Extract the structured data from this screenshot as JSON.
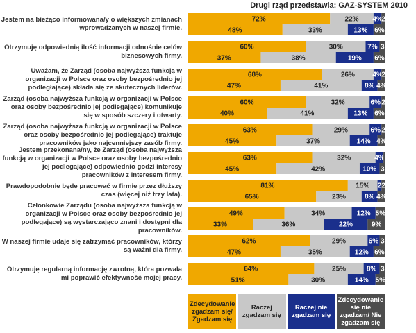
{
  "chart_data": {
    "type": "stacked-bar-horizontal",
    "title": "Drugi rząd przedstawia: GAZ-SYSTEM 2010",
    "xlim": [
      0,
      100
    ],
    "categories": [
      "Jestem na bieżąco informowana/y o większych zmianach wprowadzanych w naszej firmie.",
      null,
      "Otrzymuję odpowiednią ilość informacji odnośnie celów biznesowych firmy.",
      null,
      "Uważam, że Zarząd (osoba najwyższa funkcją w organizacji w Polsce oraz osoby bezpośrednio jej podległające) składa się ze skutecznych liderów.",
      null,
      "Zarząd (osoba najwyższa funkcją w organizacji w Polsce oraz osoby bezpośrednio jej podlegające) komunikuje się w sposób szczery i otwarty.",
      null,
      "Zarząd (osoba najwyższa funkcją w organizacji w Polsce oraz osoby bezpośrednio jej podlegające) traktuje pracowników jako najcenniejszy zasób firmy.",
      null,
      "Jestem przekonana/ny, że Zarząd (osoba najwyższa funkcją w organizacji w Polsce oraz osoby bezpośrednio jej podlegające) odpowiednio godzi interesy pracowników z interesem firmy.",
      null,
      "Prawdopodobnie będę pracować w firmie przez dłuższy czas (więcej niż trzy lata).",
      null,
      "Członkowie Zarządu (osoba najwyższa funkcją w organizacji w Polsce oraz osoby bezpośrednio jej podlegające) są wystarczająco znani i dostępni dla pracowników.",
      null,
      "W naszej firmie udaje się zatrzymać pracowników, którzy są ważni dla firmy.",
      null,
      "Otrzymuję regularną informację zwrotną, która pozwala mi poprawić efektywność mojej pracy.",
      null
    ],
    "series": [
      {
        "name": "Zdecydowanie zgadzam się/ Zgadzam się",
        "color": "#f0a800",
        "text_color": "#222222",
        "values": [
          72,
          48,
          60,
          37,
          68,
          47,
          60,
          40,
          63,
          45,
          63,
          45,
          81,
          65,
          49,
          33,
          62,
          47,
          64,
          51
        ],
        "value_labels": [
          "72%",
          "48%",
          "60%",
          "37%",
          "68%",
          "47%",
          "60%",
          "40%",
          "63%",
          "45%",
          "63%",
          "45%",
          "81%",
          "65%",
          "49%",
          "33%",
          "62%",
          "47%",
          "64%",
          "51%"
        ]
      },
      {
        "name": "Raczej zgadzam się",
        "color": "#c8c8c8",
        "text_color": "#222222",
        "values": [
          22,
          33,
          30,
          38,
          26,
          41,
          32,
          41,
          29,
          37,
          32,
          42,
          15,
          23,
          34,
          36,
          29,
          35,
          25,
          30
        ],
        "value_labels": [
          "22%",
          "33%",
          "30%",
          "38%",
          "26%",
          "41%",
          "32%",
          "41%",
          "29%",
          "37%",
          "32%",
          "42%",
          "15%",
          "23%",
          "34%",
          "36%",
          "29%",
          "35%",
          "25%",
          "30%"
        ]
      },
      {
        "name": "Raczej nie zgadzam się",
        "color": "#1a2f8c",
        "text_color": "#ffffff",
        "values": [
          4,
          13,
          7,
          19,
          4,
          8,
          6,
          13,
          6,
          14,
          4,
          10,
          2,
          8,
          12,
          22,
          6,
          12,
          8,
          14
        ],
        "value_labels": [
          "4%",
          "13%",
          "7%",
          "19%",
          "4%",
          "8%",
          "6%",
          "13%",
          "6%",
          "14%",
          "4%",
          "10%",
          "2",
          "8%",
          "12%",
          "22%",
          "6%",
          "12%",
          "8%",
          "14%"
        ]
      },
      {
        "name": "Zdecydowanie się nie zgadzam/ Nie zgadzam się",
        "color": "#4d4d4d",
        "text_color": "#ffffff",
        "values": [
          2,
          6,
          3,
          6,
          2,
          4,
          2,
          6,
          2,
          4,
          1,
          3,
          2,
          4,
          5,
          9,
          3,
          6,
          3,
          5
        ],
        "value_labels": [
          "2",
          "6%",
          "3",
          "6%",
          "2",
          "4%",
          "2",
          "6%",
          "2",
          "4%",
          null,
          "3",
          "2",
          "4%",
          "5%",
          "9%",
          "3",
          "6%",
          "3",
          "5%"
        ]
      }
    ]
  }
}
